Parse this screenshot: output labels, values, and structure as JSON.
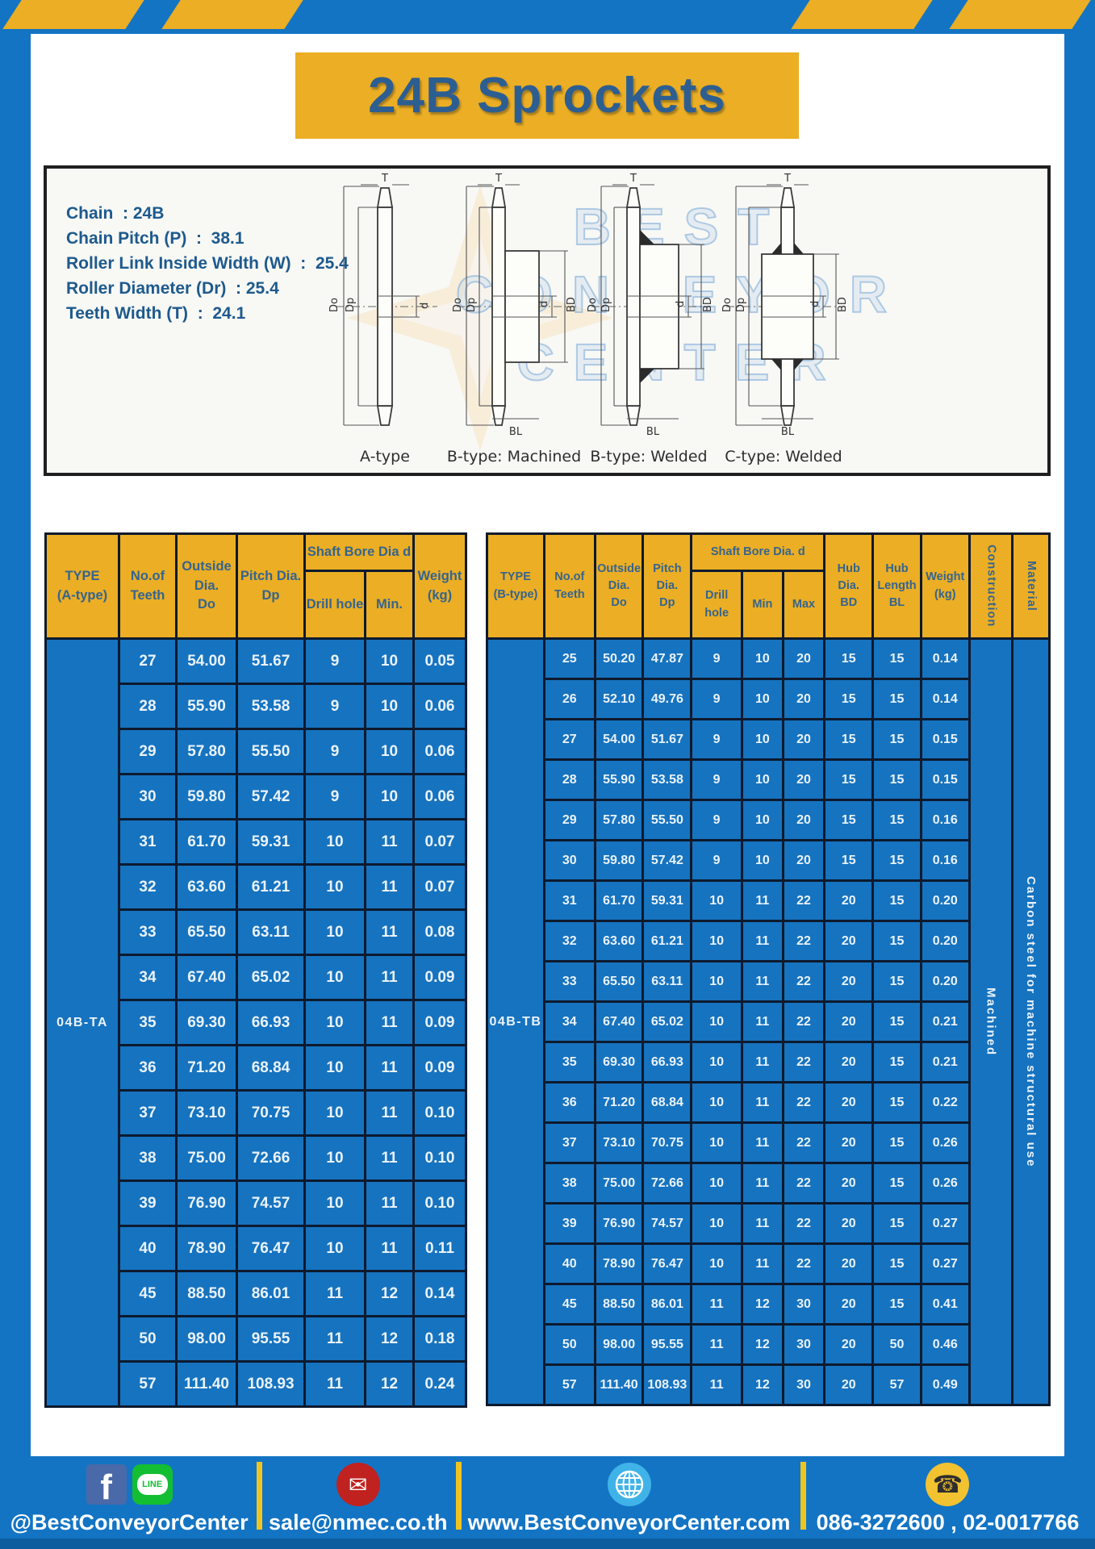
{
  "page": {
    "title": "24B Sprockets"
  },
  "colors": {
    "frame_blue": "#1374C4",
    "gold": "#EBAE24",
    "table_blue": "#1673BF",
    "navy_text": "#2D5E91",
    "cell_border": "#0D1A2E"
  },
  "specs": {
    "lines": [
      "Chain  : 24B",
      "Chain Pitch (P)  :  38.1",
      "Roller Link Inside Width (W)  :  25.4",
      "Roller Diameter (Dr)  : 25.4",
      "Teeth Width (T)  :  24.1"
    ]
  },
  "watermark": {
    "lines": [
      "BEST",
      "CONVEYOR",
      "CENTER"
    ]
  },
  "diagrams": {
    "captions": [
      "A-type",
      "B-type: Machined",
      "B-type: Welded",
      "C-type: Welded"
    ],
    "dim_labels": {
      "t": "T",
      "do": "Do",
      "dp": "Dp",
      "d": "d",
      "bd": "BD",
      "bl": "BL"
    }
  },
  "tableA": {
    "headers": {
      "type": "TYPE\n(A-type)",
      "teeth": "No.of\nTeeth",
      "outside": "Outside\nDia.\nDo",
      "pitch": "Pitch Dia.\nDp",
      "shaft": "Shaft Bore Dia d",
      "drill": "Drill hole",
      "min": "Min.",
      "weight": "Weight\n(kg)"
    },
    "pre": [
      "04B-TA"
    ],
    "rows": [
      [
        "27",
        "54.00",
        "51.67",
        "9",
        "10",
        "0.05"
      ],
      [
        "28",
        "55.90",
        "53.58",
        "9",
        "10",
        "0.06"
      ],
      [
        "29",
        "57.80",
        "55.50",
        "9",
        "10",
        "0.06"
      ],
      [
        "30",
        "59.80",
        "57.42",
        "9",
        "10",
        "0.06"
      ],
      [
        "31",
        "61.70",
        "59.31",
        "10",
        "11",
        "0.07"
      ],
      [
        "32",
        "63.60",
        "61.21",
        "10",
        "11",
        "0.07"
      ],
      [
        "33",
        "65.50",
        "63.11",
        "10",
        "11",
        "0.08"
      ],
      [
        "34",
        "67.40",
        "65.02",
        "10",
        "11",
        "0.09"
      ],
      [
        "35",
        "69.30",
        "66.93",
        "10",
        "11",
        "0.09"
      ],
      [
        "36",
        "71.20",
        "68.84",
        "10",
        "11",
        "0.09"
      ],
      [
        "37",
        "73.10",
        "70.75",
        "10",
        "11",
        "0.10"
      ],
      [
        "38",
        "75.00",
        "72.66",
        "10",
        "11",
        "0.10"
      ],
      [
        "39",
        "76.90",
        "74.57",
        "10",
        "11",
        "0.10"
      ],
      [
        "40",
        "78.90",
        "76.47",
        "10",
        "11",
        "0.11"
      ],
      [
        "45",
        "88.50",
        "86.01",
        "11",
        "12",
        "0.14"
      ],
      [
        "50",
        "98.00",
        "95.55",
        "11",
        "12",
        "0.18"
      ],
      [
        "57",
        "111.40",
        "108.93",
        "11",
        "12",
        "0.24"
      ]
    ]
  },
  "tableB": {
    "headers": {
      "type": "TYPE\n(B-type)",
      "teeth": "No.of\nTeeth",
      "outside": "Outside\nDia.\nDo",
      "pitch": "Pitch\nDia.\nDp",
      "shaft": "Shaft Bore Dia.  d",
      "drill": "Drill hole",
      "min": "Min",
      "max": "Max",
      "hub_dia": "Hub\nDia.\nBD",
      "hub_len": "Hub\nLength\nBL",
      "weight": "Weight\n(kg)",
      "construction": "Construction",
      "material": "Material"
    },
    "pre": [
      "04B-TB"
    ],
    "post": [
      "Machined",
      "Carbon steel for machine structural use"
    ],
    "rows": [
      [
        "25",
        "50.20",
        "47.87",
        "9",
        "10",
        "20",
        "15",
        "15",
        "0.14"
      ],
      [
        "26",
        "52.10",
        "49.76",
        "9",
        "10",
        "20",
        "15",
        "15",
        "0.14"
      ],
      [
        "27",
        "54.00",
        "51.67",
        "9",
        "10",
        "20",
        "15",
        "15",
        "0.15"
      ],
      [
        "28",
        "55.90",
        "53.58",
        "9",
        "10",
        "20",
        "15",
        "15",
        "0.15"
      ],
      [
        "29",
        "57.80",
        "55.50",
        "9",
        "10",
        "20",
        "15",
        "15",
        "0.16"
      ],
      [
        "30",
        "59.80",
        "57.42",
        "9",
        "10",
        "20",
        "15",
        "15",
        "0.16"
      ],
      [
        "31",
        "61.70",
        "59.31",
        "10",
        "11",
        "22",
        "20",
        "15",
        "0.20"
      ],
      [
        "32",
        "63.60",
        "61.21",
        "10",
        "11",
        "22",
        "20",
        "15",
        "0.20"
      ],
      [
        "33",
        "65.50",
        "63.11",
        "10",
        "11",
        "22",
        "20",
        "15",
        "0.20"
      ],
      [
        "34",
        "67.40",
        "65.02",
        "10",
        "11",
        "22",
        "20",
        "15",
        "0.21"
      ],
      [
        "35",
        "69.30",
        "66.93",
        "10",
        "11",
        "22",
        "20",
        "15",
        "0.21"
      ],
      [
        "36",
        "71.20",
        "68.84",
        "10",
        "11",
        "22",
        "20",
        "15",
        "0.22"
      ],
      [
        "37",
        "73.10",
        "70.75",
        "10",
        "11",
        "22",
        "20",
        "15",
        "0.26"
      ],
      [
        "38",
        "75.00",
        "72.66",
        "10",
        "11",
        "22",
        "20",
        "15",
        "0.26"
      ],
      [
        "39",
        "76.90",
        "74.57",
        "10",
        "11",
        "22",
        "20",
        "15",
        "0.27"
      ],
      [
        "40",
        "78.90",
        "76.47",
        "10",
        "11",
        "22",
        "20",
        "15",
        "0.27"
      ],
      [
        "45",
        "88.50",
        "86.01",
        "11",
        "12",
        "30",
        "20",
        "15",
        "0.41"
      ],
      [
        "50",
        "98.00",
        "95.55",
        "11",
        "12",
        "30",
        "20",
        "50",
        "0.46"
      ],
      [
        "57",
        "111.40",
        "108.93",
        "11",
        "12",
        "30",
        "20",
        "57",
        "0.49"
      ]
    ]
  },
  "footer": {
    "social": "@BestConveyorCenter",
    "email": "sale@nmec.co.th",
    "website": "www.BestConveyorCenter.com",
    "phones": "086-3272600 , 02-0017766",
    "icons": {
      "facebook": "f",
      "line": "LINE",
      "email": "✉",
      "phone": "☎"
    }
  }
}
